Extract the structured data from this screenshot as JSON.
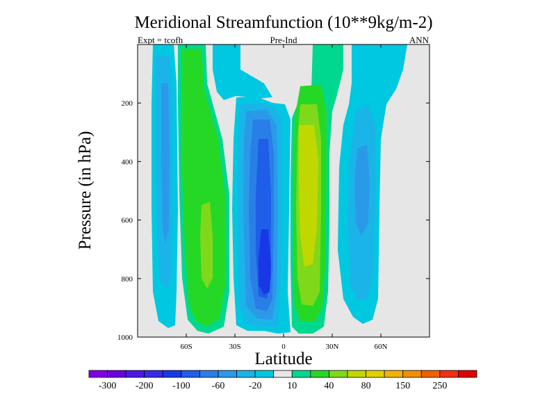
{
  "chart_data": {
    "type": "contour",
    "title": "Meridional Streamfunction (10**9kg/m-2)",
    "left_string": "Expt = tcofh",
    "center_string": "Pre-Ind",
    "right_string": "ANN",
    "xlabel": "Latitude",
    "ylabel": "Pressure (in hPa)",
    "xlim": [
      -90,
      90
    ],
    "ylim": [
      1000,
      0
    ],
    "x_ticks": [
      {
        "value": -60,
        "label": "60S"
      },
      {
        "value": -30,
        "label": "30S"
      },
      {
        "value": 0,
        "label": "0"
      },
      {
        "value": 30,
        "label": "30N"
      },
      {
        "value": 60,
        "label": "60N"
      }
    ],
    "y_ticks": [
      {
        "value": 200,
        "label": "200"
      },
      {
        "value": 400,
        "label": "400"
      },
      {
        "value": 600,
        "label": "600"
      },
      {
        "value": 800,
        "label": "800"
      },
      {
        "value": 1000,
        "label": "1000"
      }
    ],
    "colorbar": {
      "colors": [
        "#7f00e8",
        "#6a00e0",
        "#4c1ae8",
        "#3a2ae8",
        "#1838e8",
        "#1f5ee8",
        "#2a7ee8",
        "#2a9ae8",
        "#1ab4e8",
        "#00c8e0",
        "#e6e6e6",
        "#00d890",
        "#26d826",
        "#80d81a",
        "#c0d800",
        "#e0d000",
        "#f0b400",
        "#f09000",
        "#f06000",
        "#f03010",
        "#e00000"
      ],
      "labels": [
        "-300",
        "-200",
        "-100",
        "-60",
        "-20",
        "10",
        "40",
        "80",
        "150",
        "250"
      ],
      "label_boundary_index": [
        1,
        3,
        5,
        7,
        9,
        11,
        13,
        15,
        17,
        19
      ]
    },
    "background_color": "#e6e6e6",
    "cells": [
      {
        "name": "southern-polar-negative-cell",
        "value": -60,
        "lat_range": [
          -76,
          -66
        ],
        "p_range": [
          20,
          975
        ],
        "core_value": -70
      },
      {
        "name": "southern-ferrel-positive-cell",
        "value": 40,
        "lat_range": [
          -68,
          -44
        ],
        "p_range": [
          20,
          980
        ],
        "core_value": 50
      },
      {
        "name": "southern-hadley-negative-cell",
        "value": -100,
        "lat_range": [
          -33,
          5
        ],
        "p_range": [
          150,
          985
        ],
        "core_value": -110
      },
      {
        "name": "northern-hadley-positive-cell",
        "value": 80,
        "lat_range": [
          7,
          33
        ],
        "p_range": [
          40,
          985
        ],
        "core_value": 90
      },
      {
        "name": "northern-ferrel-negative-cell",
        "value": -20,
        "lat_range": [
          40,
          62
        ],
        "p_range": [
          20,
          955
        ],
        "core_value": -30
      },
      {
        "name": "upper-negative-patch",
        "value": -10,
        "lat_range": [
          -45,
          -25
        ],
        "p_range": [
          20,
          130
        ],
        "core_value": -15
      }
    ]
  }
}
